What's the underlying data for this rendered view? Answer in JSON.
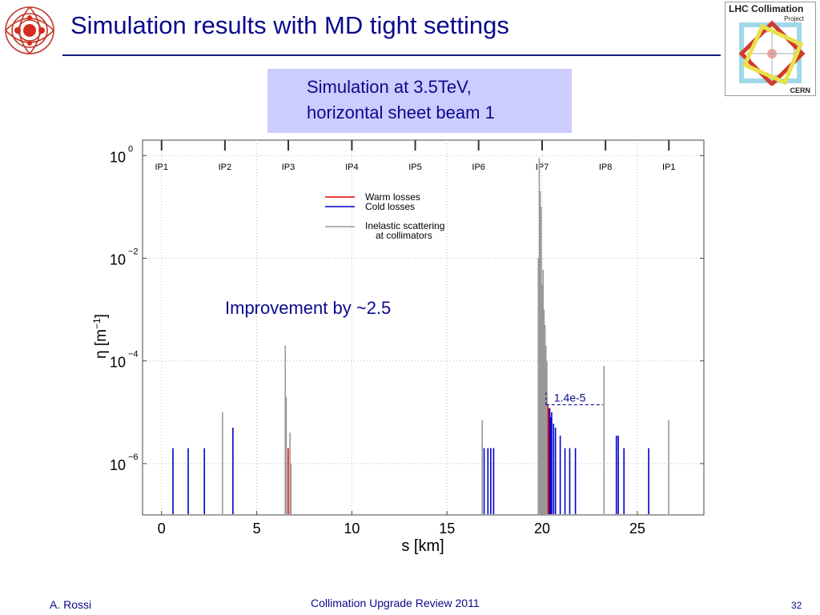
{
  "slide": {
    "title": "Simulation results with MD tight settings",
    "note_lines": [
      "Simulation at 3.5TeV,",
      "horizontal sheet beam 1"
    ],
    "footer_author": "A. Rossi",
    "footer_center": "Collimation Upgrade Review 2011",
    "page_number": "32",
    "logo_text": {
      "title": "LHC Collimation",
      "subtitle": "Project",
      "org": "CERN"
    }
  },
  "chart_data": {
    "type": "bar",
    "xlabel": "s [km]",
    "ylabel_symbol": "η [m",
    "ylabel_exp": "−1",
    "ylabel_close": "]",
    "xlim": [
      -1,
      28.5
    ],
    "ylim": [
      1e-07,
      2
    ],
    "y_scale": "log",
    "x_ticks": [
      0,
      5,
      10,
      15,
      20,
      25
    ],
    "y_ticks": [
      {
        "value": 1,
        "base": "10",
        "exp": "0"
      },
      {
        "value": 0.01,
        "base": "10",
        "exp": "−2"
      },
      {
        "value": 0.0001,
        "base": "10",
        "exp": "−4"
      },
      {
        "value": 1e-06,
        "base": "10",
        "exp": "−6"
      }
    ],
    "ip_markers": [
      {
        "label": "IP1",
        "s": 0
      },
      {
        "label": "IP2",
        "s": 3.33
      },
      {
        "label": "IP3",
        "s": 6.66
      },
      {
        "label": "IP4",
        "s": 10.0
      },
      {
        "label": "IP5",
        "s": 13.33
      },
      {
        "label": "IP6",
        "s": 16.66
      },
      {
        "label": "IP7",
        "s": 20.0
      },
      {
        "label": "IP8",
        "s": 23.33
      },
      {
        "label": "IP1",
        "s": 26.66
      }
    ],
    "annotations": {
      "improvement": "Improvement by ~2.5",
      "value_label": "1.4e-5",
      "value": 1.4e-05,
      "value_s_range": [
        20.2,
        23.2
      ]
    },
    "legend_position": "top-center",
    "colors": {
      "warm": "#e00000",
      "cold": "#0000cc",
      "collimators": "#999999",
      "annotation": "#0a0a8c"
    },
    "series": [
      {
        "name": "Warm losses",
        "key": "warm",
        "points": [
          [
            6.65,
            2e-06
          ],
          [
            19.85,
            0.0001
          ],
          [
            19.92,
            8e-05
          ],
          [
            19.98,
            0.0004
          ],
          [
            20.05,
            0.0002
          ],
          [
            20.1,
            0.0001
          ],
          [
            20.15,
            5e-05
          ],
          [
            20.2,
            3e-05
          ],
          [
            20.25,
            2e-05
          ],
          [
            20.3,
            1.4e-05
          ],
          [
            20.35,
            1.2e-05
          ],
          [
            20.4,
            8e-06
          ],
          [
            20.45,
            6e-06
          ]
        ]
      },
      {
        "name": "Cold losses",
        "key": "cold",
        "points": [
          [
            0.6,
            2e-06
          ],
          [
            1.4,
            2e-06
          ],
          [
            2.25,
            2e-06
          ],
          [
            3.75,
            5e-06
          ],
          [
            16.95,
            2e-06
          ],
          [
            17.15,
            2e-06
          ],
          [
            17.3,
            2e-06
          ],
          [
            17.45,
            2e-06
          ],
          [
            20.4,
            1.2e-05
          ],
          [
            20.45,
            8e-06
          ],
          [
            20.5,
            1e-05
          ],
          [
            20.6,
            6e-06
          ],
          [
            20.7,
            5e-06
          ],
          [
            20.95,
            3.5e-06
          ],
          [
            21.2,
            2e-06
          ],
          [
            21.45,
            2e-06
          ],
          [
            21.75,
            2e-06
          ],
          [
            23.9,
            3.5e-06
          ],
          [
            24.0,
            3.5e-06
          ],
          [
            24.3,
            2e-06
          ],
          [
            25.6,
            2e-06
          ]
        ]
      },
      {
        "name": "Inelastic scattering at collimators",
        "legend_lines": [
          "Inelastic scattering",
          "at collimators"
        ],
        "key": "collimators",
        "points": [
          [
            3.2,
            1e-05
          ],
          [
            6.5,
            0.0002
          ],
          [
            6.55,
            2e-05
          ],
          [
            6.75,
            4e-06
          ],
          [
            6.8,
            1e-06
          ],
          [
            16.85,
            7e-06
          ],
          [
            19.8,
            0.01
          ],
          [
            19.85,
            0.9
          ],
          [
            19.9,
            0.2
          ],
          [
            19.95,
            0.1
          ],
          [
            20.0,
            0.003
          ],
          [
            20.05,
            0.006
          ],
          [
            20.1,
            0.001
          ],
          [
            20.15,
            0.0005
          ],
          [
            20.2,
            0.0002
          ],
          [
            20.25,
            0.0001
          ],
          [
            23.25,
            8e-05
          ],
          [
            26.65,
            7e-06
          ]
        ]
      }
    ]
  }
}
